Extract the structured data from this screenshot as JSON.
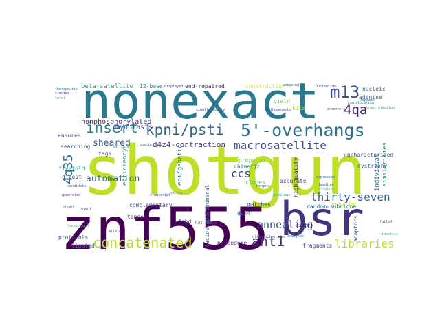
{
  "words": [
    {
      "text": "shotgun",
      "color": "#bddf26"
    },
    {
      "text": "nonexact",
      "color": "#2a788e"
    },
    {
      "text": "znf555",
      "color": "#440154"
    },
    {
      "text": "bsr",
      "color": "#46337e"
    },
    {
      "text": "5'-overhangs",
      "color": "#2c718e"
    },
    {
      "text": "concatenated",
      "color": "#b5de2b"
    },
    {
      "text": "m13",
      "color": "#3b528b"
    },
    {
      "text": "kpni/psti",
      "color": "#31688e"
    },
    {
      "text": "insert",
      "color": "#26828e"
    },
    {
      "text": "4qa",
      "color": "#482475"
    },
    {
      "text": "macrosatellite",
      "color": "#3e4989"
    },
    {
      "text": "ant1",
      "color": "#472c7a"
    },
    {
      "text": "4q35",
      "color": "#31688e"
    },
    {
      "text": "thirty-seven",
      "color": "#34618d"
    },
    {
      "text": "annealing",
      "color": "#3b528b"
    },
    {
      "text": "libraries",
      "color": "#c2df23"
    },
    {
      "text": "automation",
      "color": "#2d708e"
    },
    {
      "text": "ccs",
      "color": "#404688"
    },
    {
      "text": "sheared",
      "color": "#365d8d"
    },
    {
      "text": "d4z4-contraction",
      "color": "#443983"
    },
    {
      "text": "nonphosphorylated",
      "color": "#46307e"
    },
    {
      "text": "myoblasts",
      "color": "#414487"
    },
    {
      "text": "beta-satellite",
      "color": "#25ab82"
    },
    {
      "text": "12-base",
      "color": "#21918c"
    },
    {
      "text": "end-repaired",
      "color": "#482878"
    },
    {
      "text": "construction",
      "color": "#e2e418"
    },
    {
      "text": "nucleic",
      "color": "#306a8e"
    },
    {
      "text": "adenine",
      "color": "#2e6d8e"
    },
    {
      "text": "yield",
      "color": "#7ad151"
    },
    {
      "text": "kits",
      "color": "#addc30"
    },
    {
      "text": "ensures",
      "color": "#39568c"
    },
    {
      "text": "uncharacterized",
      "color": "#3c508b"
    },
    {
      "text": "dystrophy",
      "color": "#31688e"
    },
    {
      "text": "searching",
      "color": "#38598c"
    },
    {
      "text": "tags",
      "color": "#3f4889"
    },
    {
      "text": "prepared",
      "color": "#7fd34e"
    },
    {
      "text": "chimeric",
      "color": "#2a778e"
    },
    {
      "text": "clones",
      "color": "#4ac16d"
    },
    {
      "text": "accurate",
      "color": "#433e85"
    },
    {
      "text": "fivefold",
      "color": "#1fa188"
    },
    {
      "text": "digest",
      "color": "#3b528b"
    },
    {
      "text": "efficiency",
      "color": "#22a884"
    },
    {
      "text": "epi/genetic",
      "color": "#26828e"
    },
    {
      "text": "individual",
      "color": "#2e6e8e"
    },
    {
      "text": "similarities",
      "color": "#1f9a8a"
    },
    {
      "text": "complementary",
      "color": "#3e4989"
    },
    {
      "text": "tandem",
      "color": "#481f70"
    },
    {
      "text": "fshd",
      "color": "#443a83"
    },
    {
      "text": "matches",
      "color": "#3d4e8a"
    },
    {
      "text": "dux4",
      "color": "#355e8d"
    },
    {
      "text": "random-subclone",
      "color": "#2b748e"
    },
    {
      "text": "creating",
      "color": "#c8e020"
    },
    {
      "text": "high-quality",
      "color": "#481b6d"
    },
    {
      "text": "adaptors",
      "color": "#3b528b"
    },
    {
      "text": "facioscapulohumeral",
      "color": "#2c718e"
    },
    {
      "text": "protocols",
      "color": "#3b528b"
    },
    {
      "text": "ligated",
      "color": "#2c718e"
    },
    {
      "text": "procedure",
      "color": "#453882"
    },
    {
      "text": "fragments",
      "color": "#3f4788"
    },
    {
      "text": "dimers",
      "color": "#481467"
    },
    {
      "text": "therapeutic",
      "color": "#2a788e"
    },
    {
      "text": "studies",
      "color": "#472a7a"
    },
    {
      "text": "level",
      "color": "#35b779"
    },
    {
      "text": "compared",
      "color": "#3b528b"
    },
    {
      "text": "nucleotide",
      "color": "#3e4a89"
    },
    {
      "text": "promoters",
      "color": "#2e6f8e"
    },
    {
      "text": "repeats",
      "color": "#3c4f8a"
    },
    {
      "text": "displayed",
      "color": "#404688"
    },
    {
      "text": "pathogenesis",
      "color": "#3b528b"
    },
    {
      "text": "simultaneously",
      "color": "#3e4c8a"
    },
    {
      "text": "transformation",
      "color": "#1fa088"
    },
    {
      "text": "translocation",
      "color": "#24878e"
    },
    {
      "text": "species",
      "color": "#306a8e"
    },
    {
      "text": "multiple",
      "color": "#2a768e"
    },
    {
      "text": "candidate",
      "color": "#34618d"
    },
    {
      "text": "generated",
      "color": "#3e4c8a"
    },
    {
      "text": "expressed",
      "color": "#2d708e"
    },
    {
      "text": "leading",
      "color": "#3b528b"
    },
    {
      "text": "strategy",
      "color": "#4ec36b"
    },
    {
      "text": "targets",
      "color": "#3b528b"
    },
    {
      "text": "precious",
      "color": "#21918c"
    },
    {
      "text": "analyses",
      "color": "#2b748e"
    },
    {
      "text": "failed",
      "color": "#3b528b"
    },
    {
      "text": "identity",
      "color": "#40bd72"
    },
    {
      "text": "oligonucleotides",
      "color": "#38598c"
    },
    {
      "text": "full-length",
      "color": "#355e8d"
    },
    {
      "text": "transcript",
      "color": "#3e4a89"
    },
    {
      "text": "shown",
      "color": "#2c728e"
    },
    {
      "text": "background",
      "color": "#4ac16d"
    },
    {
      "text": "allele",
      "color": "#3f4788"
    },
    {
      "text": "event",
      "color": "#3e4989"
    },
    {
      "text": "vector",
      "color": "#24868e"
    }
  ]
}
